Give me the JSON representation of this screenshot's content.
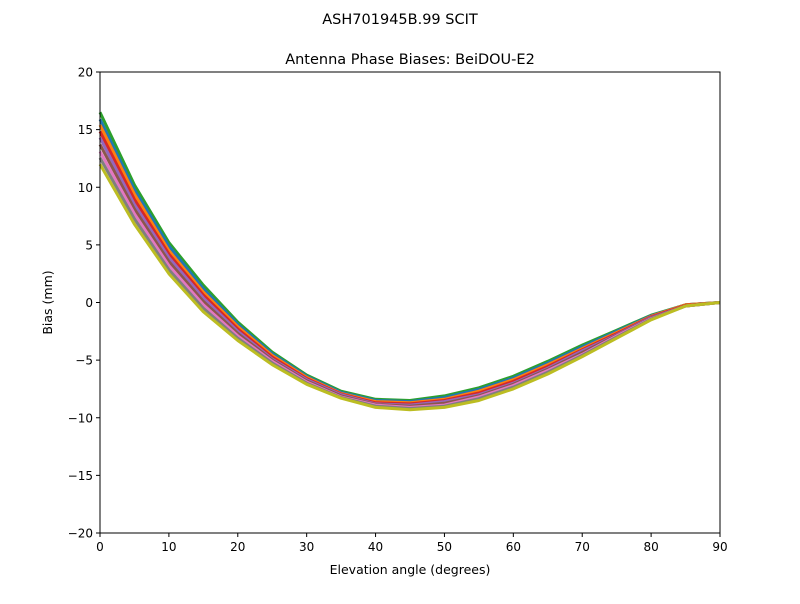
{
  "chart_data": {
    "type": "line",
    "suptitle": "ASH701945B.99   SCIT",
    "title": "Antenna Phase Biases: BeiDOU-E2",
    "xlabel": "Elevation angle (degrees)",
    "ylabel": "Bias (mm)",
    "xlim": [
      0,
      90
    ],
    "ylim": [
      -20,
      20
    ],
    "xticks": [
      "0",
      "10",
      "20",
      "30",
      "40",
      "50",
      "60",
      "70",
      "80",
      "90"
    ],
    "yticks": [
      "−20",
      "−15",
      "−10",
      "−5",
      "0",
      "5",
      "10",
      "15",
      "20"
    ],
    "grid": false,
    "x": [
      0,
      5,
      10,
      15,
      20,
      25,
      30,
      35,
      40,
      45,
      50,
      55,
      60,
      65,
      70,
      75,
      80,
      85,
      90
    ],
    "colors": [
      "#2ca02c",
      "#1f77b4",
      "#ff7f0e",
      "#d62728",
      "#9467bd",
      "#8c564b",
      "#e377c2",
      "#7f7f7f",
      "#bcbd22",
      "#17becf"
    ],
    "series": [
      {
        "values": [
          16.5,
          10.2,
          5.2,
          1.5,
          -1.7,
          -4.3,
          -6.3,
          -7.7,
          -8.4,
          -8.5,
          -8.1,
          -7.4,
          -6.4,
          -5.1,
          -3.7,
          -2.4,
          -1.1,
          -0.2,
          0
        ]
      },
      {
        "values": [
          15.9,
          9.8,
          4.9,
          1.2,
          -1.9,
          -4.45,
          -6.4,
          -7.8,
          -8.5,
          -8.6,
          -8.25,
          -7.55,
          -6.55,
          -5.25,
          -3.85,
          -2.5,
          -1.15,
          -0.2,
          0
        ]
      },
      {
        "values": [
          15.4,
          9.4,
          4.5,
          0.9,
          -2.1,
          -4.6,
          -6.5,
          -7.9,
          -8.6,
          -8.7,
          -8.4,
          -7.7,
          -6.7,
          -5.4,
          -4.0,
          -2.6,
          -1.2,
          -0.2,
          0
        ]
      },
      {
        "values": [
          14.85,
          8.95,
          4.2,
          0.65,
          -2.3,
          -4.75,
          -6.6,
          -7.95,
          -8.7,
          -8.8,
          -8.5,
          -7.85,
          -6.85,
          -5.55,
          -4.1,
          -2.7,
          -1.25,
          -0.25,
          0
        ]
      },
      {
        "values": [
          14.3,
          8.5,
          3.9,
          0.4,
          -2.5,
          -4.9,
          -6.7,
          -8.0,
          -8.8,
          -8.9,
          -8.6,
          -8.0,
          -7.0,
          -5.7,
          -4.2,
          -2.8,
          -1.3,
          -0.3,
          0
        ]
      },
      {
        "values": [
          13.7,
          8.1,
          3.55,
          0.1,
          -2.7,
          -5.0,
          -6.8,
          -8.1,
          -8.85,
          -9.0,
          -8.75,
          -8.1,
          -7.1,
          -5.8,
          -4.35,
          -2.85,
          -1.35,
          -0.3,
          0
        ]
      },
      {
        "values": [
          13.1,
          7.7,
          3.2,
          -0.2,
          -2.9,
          -5.1,
          -6.9,
          -8.2,
          -8.9,
          -9.1,
          -8.9,
          -8.2,
          -7.2,
          -5.9,
          -4.5,
          -2.9,
          -1.4,
          -0.3,
          0
        ]
      },
      {
        "values": [
          12.55,
          7.25,
          2.85,
          -0.5,
          -3.1,
          -5.25,
          -7.0,
          -8.25,
          -9.0,
          -9.2,
          -9.0,
          -8.35,
          -7.35,
          -6.05,
          -4.6,
          -3.0,
          -1.45,
          -0.3,
          0
        ]
      },
      {
        "values": [
          12.0,
          6.8,
          2.5,
          -0.8,
          -3.3,
          -5.4,
          -7.1,
          -8.3,
          -9.1,
          -9.3,
          -9.1,
          -8.5,
          -7.5,
          -6.2,
          -4.7,
          -3.1,
          -1.5,
          -0.3,
          0
        ]
      }
    ]
  }
}
